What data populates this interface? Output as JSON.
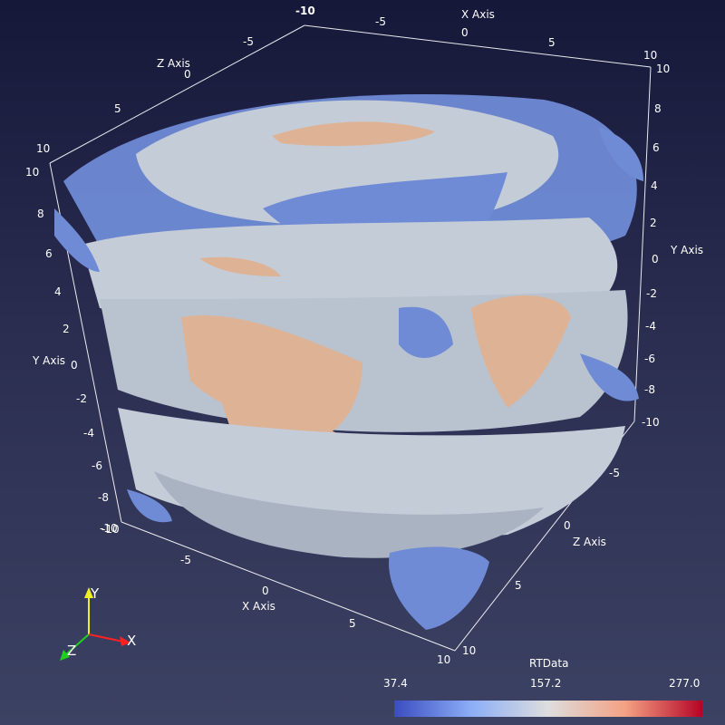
{
  "axes": {
    "x_axis": {
      "title": "X Axis",
      "ticks_top": [
        "-10",
        "-5",
        "0",
        "5",
        "10"
      ],
      "ticks_bottom": [
        "-10",
        "-5",
        "0",
        "5",
        "10"
      ]
    },
    "y_axis": {
      "title": "Y Axis",
      "ticks_left": [
        "10",
        "8",
        "6",
        "4",
        "2",
        "0",
        "-2",
        "-4",
        "-6",
        "-8",
        "-10"
      ],
      "ticks_right": [
        "10",
        "8",
        "6",
        "4",
        "2",
        "0",
        "-2",
        "-4",
        "-6",
        "-8",
        "-10"
      ]
    },
    "z_axis": {
      "title": "Z Axis",
      "ticks_top": [
        "-5",
        "0",
        "5",
        "10"
      ],
      "ticks_right": [
        "-5",
        "0",
        "5",
        "10"
      ]
    }
  },
  "scalar_bar": {
    "title": "RTData",
    "min_label": "37.4",
    "mid_label": "157.2",
    "max_label": "277.0",
    "colors": [
      "#3b4cc0",
      "#dddddd",
      "#b40426"
    ]
  },
  "orientation_triad": {
    "x": "X",
    "y": "Y",
    "z": "Z",
    "x_color": "#ff2020",
    "y_color": "#f0f020",
    "z_color": "#20d020"
  },
  "surface_colors": {
    "blue": "#6f8bd6",
    "grey": "#c4ccd8",
    "orange": "#deb395"
  }
}
